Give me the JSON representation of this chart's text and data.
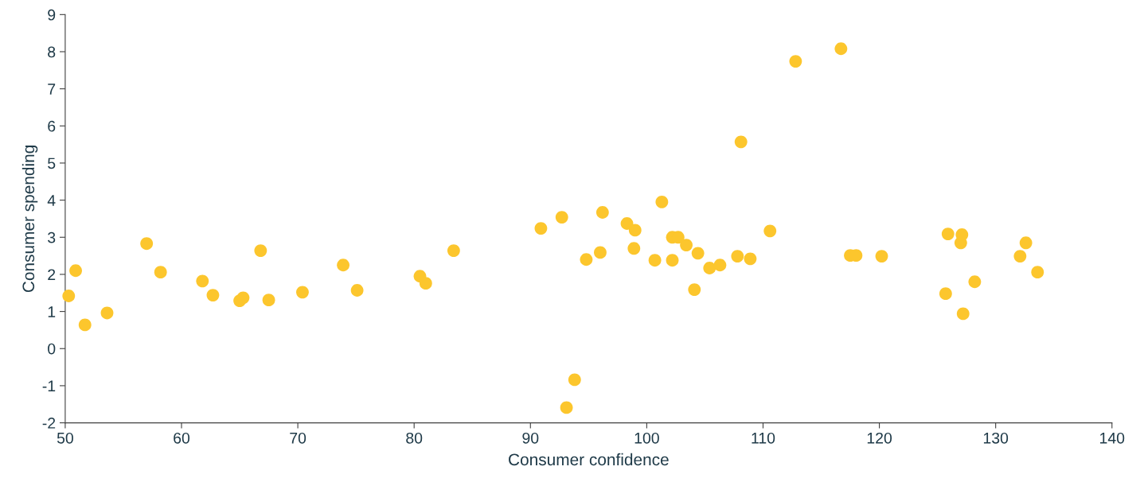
{
  "chart_data": {
    "type": "scatter",
    "xlabel": "Consumer confidence",
    "ylabel": "Consumer spending",
    "xlim": [
      50,
      140
    ],
    "xticks": [
      50,
      60,
      70,
      80,
      90,
      100,
      110,
      120,
      130,
      140
    ],
    "ylim": [
      -2,
      9
    ],
    "yticks": [
      -2,
      -1,
      0,
      1,
      2,
      3,
      4,
      5,
      6,
      7,
      8,
      9
    ],
    "grid": false,
    "marker": "circle",
    "series": [
      {
        "color": "#fcc62d",
        "x": [
          50.3,
          50.9,
          51.7,
          53.6,
          57.0,
          58.2,
          61.8,
          62.7,
          65.0,
          65.3,
          66.8,
          67.5,
          70.4,
          73.9,
          75.1,
          80.5,
          81.0,
          83.4,
          90.9,
          92.7,
          93.1,
          93.8,
          94.8,
          96.0,
          96.2,
          98.3,
          98.9,
          99.0,
          100.7,
          101.3,
          102.2,
          102.2,
          102.7,
          103.4,
          104.1,
          104.4,
          105.4,
          106.3,
          107.8,
          108.1,
          108.9,
          110.6,
          112.8,
          116.7,
          117.5,
          118.0,
          120.2,
          125.7,
          125.9,
          127.0,
          127.1,
          127.2,
          128.2,
          132.1,
          132.6,
          133.6
        ],
        "values": [
          1.42,
          2.1,
          0.64,
          0.96,
          2.83,
          2.06,
          1.82,
          1.44,
          1.29,
          1.37,
          2.64,
          1.31,
          1.52,
          2.25,
          1.57,
          1.95,
          1.76,
          2.64,
          3.24,
          3.54,
          -1.59,
          -0.84,
          2.4,
          2.59,
          3.67,
          3.37,
          2.7,
          3.19,
          2.38,
          3.95,
          3.0,
          2.38,
          3.0,
          2.79,
          1.59,
          2.57,
          2.17,
          2.25,
          2.49,
          5.57,
          2.42,
          3.17,
          7.74,
          8.08,
          2.51,
          2.51,
          2.49,
          1.48,
          3.09,
          2.85,
          3.07,
          0.94,
          1.8,
          2.49,
          2.85,
          2.06
        ]
      }
    ]
  }
}
